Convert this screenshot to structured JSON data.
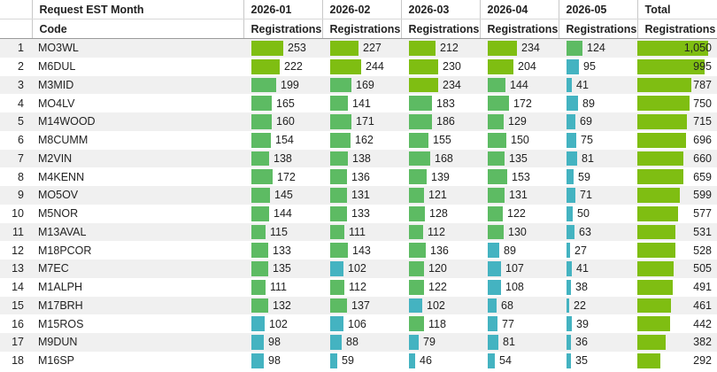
{
  "header": {
    "group_label": "Request EST Month",
    "months": [
      "2026-01",
      "2026-02",
      "2026-03",
      "2026-04",
      "2026-05"
    ],
    "total_label": "Total",
    "code_label": "Code",
    "measure_label": "Registrations"
  },
  "colors": {
    "green": "#7fbe12",
    "mid": "#5dbb63",
    "teal": "#44b3c1"
  },
  "rows": [
    {
      "index": "1",
      "code": "MO3WL",
      "values": [
        253,
        227,
        212,
        234,
        124
      ],
      "total": 1050,
      "total_label": "1,050"
    },
    {
      "index": "2",
      "code": "M6DUL",
      "values": [
        222,
        244,
        230,
        204,
        95
      ],
      "total": 995,
      "total_label": "995"
    },
    {
      "index": "3",
      "code": "M3MID",
      "values": [
        199,
        169,
        234,
        144,
        41
      ],
      "total": 787,
      "total_label": "787"
    },
    {
      "index": "4",
      "code": "MO4LV",
      "values": [
        165,
        141,
        183,
        172,
        89
      ],
      "total": 750,
      "total_label": "750"
    },
    {
      "index": "5",
      "code": "M14WOOD",
      "values": [
        160,
        171,
        186,
        129,
        69
      ],
      "total": 715,
      "total_label": "715"
    },
    {
      "index": "6",
      "code": "M8CUMM",
      "values": [
        154,
        162,
        155,
        150,
        75
      ],
      "total": 696,
      "total_label": "696"
    },
    {
      "index": "7",
      "code": "M2VIN",
      "values": [
        138,
        138,
        168,
        135,
        81
      ],
      "total": 660,
      "total_label": "660"
    },
    {
      "index": "8",
      "code": "M4KENN",
      "values": [
        172,
        136,
        139,
        153,
        59
      ],
      "total": 659,
      "total_label": "659"
    },
    {
      "index": "9",
      "code": "MO5OV",
      "values": [
        145,
        131,
        121,
        131,
        71
      ],
      "total": 599,
      "total_label": "599"
    },
    {
      "index": "10",
      "code": "M5NOR",
      "values": [
        144,
        133,
        128,
        122,
        50
      ],
      "total": 577,
      "total_label": "577"
    },
    {
      "index": "11",
      "code": "M13AVAL",
      "values": [
        115,
        111,
        112,
        130,
        63
      ],
      "total": 531,
      "total_label": "531"
    },
    {
      "index": "12",
      "code": "M18PCOR",
      "values": [
        133,
        143,
        136,
        89,
        27
      ],
      "total": 528,
      "total_label": "528"
    },
    {
      "index": "13",
      "code": "M7EC",
      "values": [
        135,
        102,
        120,
        107,
        41
      ],
      "total": 505,
      "total_label": "505"
    },
    {
      "index": "14",
      "code": "M1ALPH",
      "values": [
        111,
        112,
        122,
        108,
        38
      ],
      "total": 491,
      "total_label": "491"
    },
    {
      "index": "15",
      "code": "M17BRH",
      "values": [
        132,
        137,
        102,
        68,
        22
      ],
      "total": 461,
      "total_label": "461"
    },
    {
      "index": "16",
      "code": "M15ROS",
      "values": [
        102,
        106,
        118,
        77,
        39
      ],
      "total": 442,
      "total_label": "442"
    },
    {
      "index": "17",
      "code": "M9DUN",
      "values": [
        98,
        88,
        79,
        81,
        36
      ],
      "total": 382,
      "total_label": "382"
    },
    {
      "index": "18",
      "code": "M16SP",
      "values": [
        98,
        59,
        46,
        54,
        35
      ],
      "total": 292,
      "total_label": "292"
    }
  ]
}
